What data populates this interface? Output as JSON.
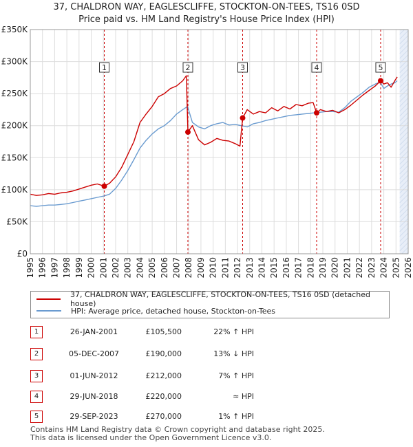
{
  "title_line1": "37, CHALDRON WAY, EAGLESCLIFFE, STOCKTON-ON-TEES, TS16 0SD",
  "title_line2": "Price paid vs. HM Land Registry's House Price Index (HPI)",
  "chart_data": {
    "type": "line",
    "xlim": [
      1995,
      2026
    ],
    "ylim": [
      0,
      350000
    ],
    "y_ticks": [
      0,
      50000,
      100000,
      150000,
      200000,
      250000,
      300000,
      350000
    ],
    "y_tick_labels": [
      "£0",
      "£50K",
      "£100K",
      "£150K",
      "£200K",
      "£250K",
      "£300K",
      "£350K"
    ],
    "x_ticks": [
      1995,
      1996,
      1997,
      1998,
      1999,
      2000,
      2001,
      2002,
      2003,
      2004,
      2005,
      2006,
      2007,
      2008,
      2009,
      2010,
      2011,
      2012,
      2013,
      2014,
      2015,
      2016,
      2017,
      2018,
      2019,
      2020,
      2021,
      2022,
      2023,
      2024,
      2025,
      2026
    ],
    "x_tick_labels": [
      "1995",
      "1996",
      "1997",
      "1998",
      "1999",
      "2000",
      "2001",
      "2002",
      "2003",
      "2004",
      "2005",
      "2006",
      "2007",
      "2008",
      "2009",
      "2010",
      "2011",
      "2012",
      "2013",
      "2014",
      "2015",
      "2016",
      "2017",
      "2018",
      "2019",
      "2020",
      "2021",
      "2022",
      "2023",
      "2024",
      "2025",
      "2026"
    ],
    "grid": true,
    "shaded_region": {
      "from": 2025.3,
      "to": 2026
    },
    "series": [
      {
        "name": "37, CHALDRON WAY, EAGLESCLIFFE, STOCKTON-ON-TEES, TS16 0SD (detached house)",
        "color": "#cc0000",
        "x": [
          1995.0,
          1995.5,
          1996.0,
          1996.5,
          1997.0,
          1997.5,
          1998.0,
          1998.5,
          1999.0,
          1999.5,
          2000.0,
          2000.5,
          2001.07,
          2001.5,
          2002.0,
          2002.5,
          2003.0,
          2003.5,
          2004.0,
          2004.5,
          2005.0,
          2005.5,
          2006.0,
          2006.5,
          2007.0,
          2007.5,
          2007.8,
          2007.93,
          2008.3,
          2008.8,
          2009.3,
          2009.8,
          2010.3,
          2010.8,
          2011.3,
          2011.8,
          2012.2,
          2012.42,
          2012.8,
          2013.3,
          2013.8,
          2014.3,
          2014.8,
          2015.3,
          2015.8,
          2016.3,
          2016.8,
          2017.3,
          2017.8,
          2018.2,
          2018.49,
          2018.8,
          2019.3,
          2019.8,
          2020.3,
          2020.8,
          2021.3,
          2021.8,
          2022.3,
          2022.8,
          2023.3,
          2023.74,
          2024.0,
          2024.3,
          2024.6,
          2024.9,
          2025.1
        ],
        "values": [
          93000,
          91000,
          92000,
          94000,
          93000,
          95000,
          96000,
          98000,
          101000,
          104000,
          107000,
          109000,
          105500,
          110000,
          120000,
          135000,
          155000,
          175000,
          205000,
          218000,
          230000,
          245000,
          250000,
          258000,
          262000,
          270000,
          278000,
          190000,
          200000,
          178000,
          170000,
          174000,
          180000,
          177000,
          176000,
          172000,
          168000,
          212000,
          225000,
          218000,
          222000,
          220000,
          228000,
          223000,
          230000,
          226000,
          233000,
          231000,
          235000,
          236000,
          220000,
          225000,
          222000,
          224000,
          220000,
          225000,
          232000,
          240000,
          248000,
          255000,
          262000,
          270000,
          265000,
          267000,
          260000,
          270000,
          276000
        ]
      },
      {
        "name": "HPI: Average price, detached house, Stockton-on-Tees",
        "color": "#6a9bd0",
        "x": [
          1995.0,
          1995.5,
          1996.0,
          1996.5,
          1997.0,
          1997.5,
          1998.0,
          1998.5,
          1999.0,
          1999.5,
          2000.0,
          2000.5,
          2001.0,
          2001.5,
          2002.0,
          2002.5,
          2003.0,
          2003.5,
          2004.0,
          2004.5,
          2005.0,
          2005.5,
          2006.0,
          2006.5,
          2007.0,
          2007.5,
          2007.9,
          2008.3,
          2008.8,
          2009.3,
          2009.8,
          2010.3,
          2010.8,
          2011.3,
          2011.8,
          2012.3,
          2012.8,
          2013.3,
          2013.8,
          2014.3,
          2014.8,
          2015.3,
          2015.8,
          2016.3,
          2016.8,
          2017.3,
          2017.8,
          2018.3,
          2018.8,
          2019.3,
          2019.8,
          2020.3,
          2020.8,
          2021.3,
          2021.8,
          2022.3,
          2022.8,
          2023.3,
          2023.7,
          2024.0,
          2024.3,
          2024.6,
          2024.9,
          2025.1
        ],
        "values": [
          75000,
          74000,
          75000,
          76000,
          76000,
          77000,
          78000,
          80000,
          82000,
          84000,
          86000,
          88000,
          90000,
          93000,
          102000,
          115000,
          130000,
          147000,
          165000,
          177000,
          187000,
          195000,
          200000,
          208000,
          218000,
          225000,
          230000,
          205000,
          198000,
          195000,
          200000,
          203000,
          205000,
          201000,
          202000,
          200000,
          198000,
          203000,
          205000,
          208000,
          210000,
          212000,
          214000,
          216000,
          217000,
          218000,
          219000,
          220000,
          221000,
          222000,
          222000,
          221000,
          228000,
          238000,
          245000,
          252000,
          260000,
          265000,
          268000,
          258000,
          262000,
          265000,
          267000,
          270000
        ]
      }
    ],
    "sales": [
      {
        "n": "1",
        "date": "26-JAN-2001",
        "x": 2001.07,
        "price_value": 105500,
        "price": "£105,500",
        "hpi": "22% ↑ HPI"
      },
      {
        "n": "2",
        "date": "05-DEC-2007",
        "x": 2007.93,
        "price_value": 190000,
        "price": "£190,000",
        "hpi": "13% ↓ HPI"
      },
      {
        "n": "3",
        "date": "01-JUN-2012",
        "x": 2012.42,
        "price_value": 212000,
        "price": "£212,000",
        "hpi": "7% ↑ HPI"
      },
      {
        "n": "4",
        "date": "29-JUN-2018",
        "x": 2018.49,
        "price_value": 220000,
        "price": "£220,000",
        "hpi": "≈ HPI"
      },
      {
        "n": "5",
        "date": "29-SEP-2023",
        "x": 2023.74,
        "price_value": 270000,
        "price": "£270,000",
        "hpi": "1% ↑ HPI"
      }
    ]
  },
  "legend": {
    "series1": "37, CHALDRON WAY, EAGLESCLIFFE, STOCKTON-ON-TEES, TS16 0SD (detached house)",
    "series2": "HPI: Average price, detached house, Stockton-on-Tees"
  },
  "footer_line1": "Contains HM Land Registry data © Crown copyright and database right 2025.",
  "footer_line2": "This data is licensed under the Open Government Licence v3.0."
}
